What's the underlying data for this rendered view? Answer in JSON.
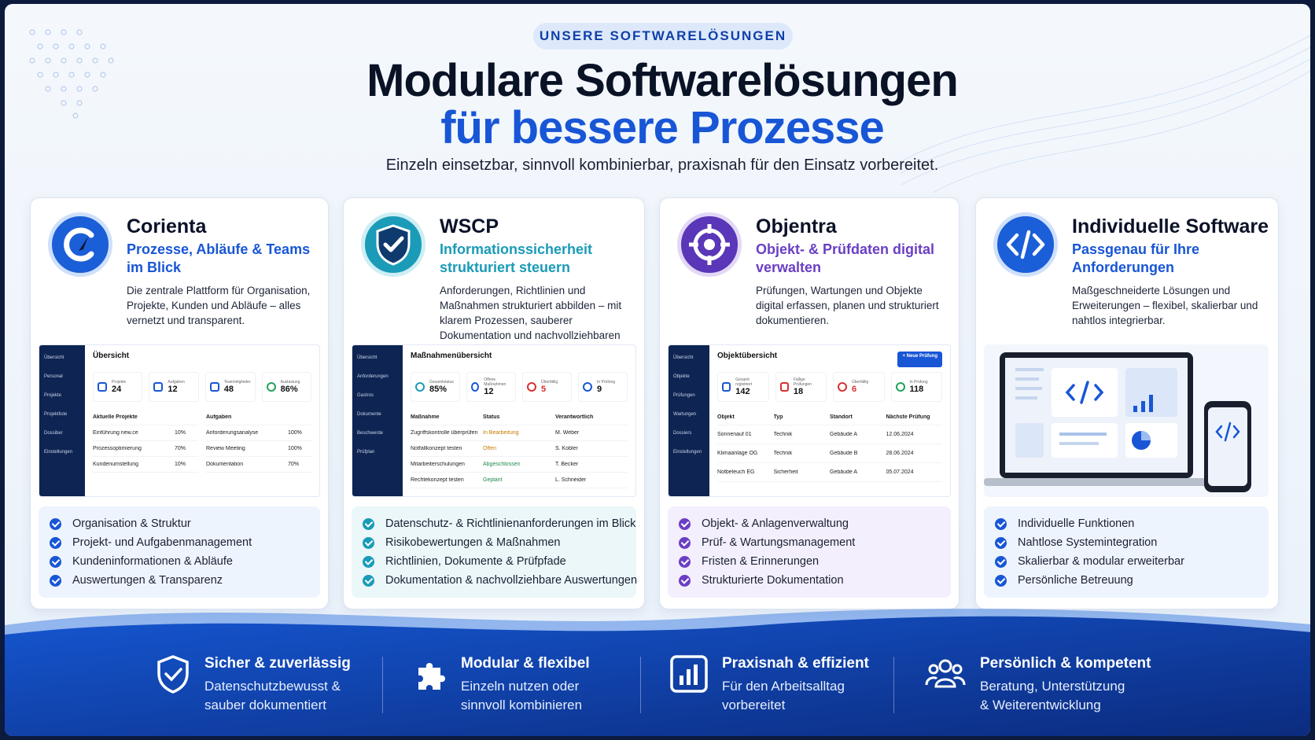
{
  "header": {
    "badge": "UNSERE SOFTWARELÖSUNGEN",
    "title_line1": "Modulare Softwarelösungen",
    "title_line2": "für bessere Prozesse",
    "subtitle": "Einzeln einsetzbar, sinnvoll kombinierbar, praxisnah für den Einsatz vorbereitet."
  },
  "colors": {
    "primary": "#1856d6",
    "teal": "#1a9bb8",
    "purple": "#6a3fc4",
    "dark": "#0a1226"
  },
  "cards": [
    {
      "name": "Corienta",
      "tagline": "Prozesse, Abläufe & Teams im Blick",
      "description": "Die zentrale Plattform für Organisation, Projekte, Kunden und Abläufe – alles vernetzt und transparent.",
      "icon": "corienta-c-logo",
      "features": [
        "Organisation & Struktur",
        "Projekt- und Aufgabenmanagement",
        "Kundeninformationen & Abläufe",
        "Auswertungen & Transparenz"
      ],
      "shot": {
        "title": "Übersicht",
        "nav": [
          "Übersicht",
          "Personal",
          "Projekte",
          "Projektliste",
          "Dossiber",
          "Einstellungen"
        ],
        "stats": [
          {
            "label": "Projekte",
            "value": "24"
          },
          {
            "label": "Aufgaben",
            "value": "12"
          },
          {
            "label": "Teammitglieder",
            "value": "48"
          },
          {
            "label": "Auslastung",
            "value": "86%"
          }
        ],
        "left_head": "Aktuelle Projekte",
        "left_rows": [
          [
            "Einführung new.ce",
            "10%"
          ],
          [
            "Prozessoptimierung",
            "70%"
          ],
          [
            "Kundenumstellung",
            "10%"
          ]
        ],
        "right_head": "Aufgaben",
        "right_rows": [
          [
            "Anforderungsanalyse",
            "100%"
          ],
          [
            "Review Meeting",
            "100%"
          ],
          [
            "Dokumentation",
            "70%"
          ]
        ]
      }
    },
    {
      "name": "WSCP",
      "tagline": "Informationssicherheit strukturiert steuern",
      "description": "Anforderungen, Richtlinien und Maßnahmen strukturiert abbilden – mit klarem Prozessen, sauberer Dokumentation und nachvollziehbaren Abläufen.",
      "icon": "shield-check-logo",
      "features": [
        "Datenschutz- & Richtlinienanforderungen im Blick",
        "Risikobewertungen & Maßnahmen",
        "Richtlinien, Dokumente & Prüfpfade",
        "Dokumentation & nachvollziehbare Auswertungen"
      ],
      "shot": {
        "title": "Maßnahmenübersicht",
        "nav": [
          "Übersicht",
          "Anforderungen",
          "Gastros",
          "Dokumente",
          "Beschwerde",
          "Prüfplan"
        ],
        "stats": [
          {
            "label": "Gesamtstatus",
            "value": "85%"
          },
          {
            "label": "Offene Maßnahmen",
            "value": "12"
          },
          {
            "label": "Überfällig",
            "value": "5"
          },
          {
            "label": "In Prüfung",
            "value": "9"
          }
        ],
        "headers": [
          "Maßnahme",
          "Status",
          "Verantwortlich"
        ],
        "rows": [
          [
            "Zugriffskontrolle überprüfen",
            "In Bearbeitung",
            "M. Weber"
          ],
          [
            "Notfallkonzept testen",
            "Offen",
            "S. Kobler"
          ],
          [
            "Mitarbeiterschulungen",
            "Abgeschlossen",
            "T. Becker"
          ],
          [
            "Rechtekonzept testen",
            "Geplant",
            "L. Schneider"
          ]
        ]
      }
    },
    {
      "name": "Objentra",
      "tagline": "Objekt- & Prüfdaten digital verwalten",
      "description": "Prüfungen, Wartungen und Objekte digital erfassen, planen und strukturiert dokumentieren.",
      "icon": "target-logo",
      "features": [
        "Objekt- & Anlagenverwaltung",
        "Prüf- & Wartungsmanagement",
        "Fristen & Erinnerungen",
        "Strukturierte Dokumentation"
      ],
      "shot": {
        "title": "Objektübersicht",
        "button": "+ Neue Prüfung",
        "nav": [
          "Übersicht",
          "Objekte",
          "Prüfungen",
          "Wartungen",
          "Dossiers",
          "Einstellungen"
        ],
        "stats": [
          {
            "label": "Gesamt registriert",
            "value": "142"
          },
          {
            "label": "Fällige Prüfungen",
            "value": "18"
          },
          {
            "label": "Überfällig",
            "value": "6"
          },
          {
            "label": "In Prüfung",
            "value": "118"
          }
        ],
        "headers": [
          "Objekt",
          "Typ",
          "Standort",
          "Nächste Prüfung"
        ],
        "rows": [
          [
            "Sonnenauf 01",
            "Technik",
            "Gebäude A",
            "12.06.2024"
          ],
          [
            "Klimaanlage OG",
            "Technik",
            "Gebäude B",
            "28.06.2024"
          ],
          [
            "Notbeleuch EG",
            "Sicherheit",
            "Gebäude A",
            "05.07.2024"
          ]
        ]
      }
    },
    {
      "name": "Individuelle Software",
      "tagline": "Passgenau für Ihre Anforderungen",
      "description": "Maßgeschneiderte Lösungen und Erweiterungen – flexibel, skalierbar und nahtlos integrierbar.",
      "icon": "code-logo",
      "features": [
        "Individuelle Funktionen",
        "Nahtlose Systemintegration",
        "Skalierbar & modular erweiterbar",
        "Persönliche Betreuung"
      ]
    }
  ],
  "footer": [
    {
      "title": "Sicher & zuverlässig",
      "desc1": "Datenschutzbewusst &",
      "desc2": "sauber dokumentiert",
      "icon": "shield-check-icon"
    },
    {
      "title": "Modular & flexibel",
      "desc1": "Einzeln nutzen oder",
      "desc2": "sinnvoll kombinieren",
      "icon": "puzzle-icon"
    },
    {
      "title": "Praxisnah & effizient",
      "desc1": "Für den Arbeitsalltag",
      "desc2": "vorbereitet",
      "icon": "bar-chart-icon"
    },
    {
      "title": "Persönlich & kompetent",
      "desc1": "Beratung, Unterstützung",
      "desc2": "& Weiterentwicklung",
      "icon": "team-icon"
    }
  ]
}
